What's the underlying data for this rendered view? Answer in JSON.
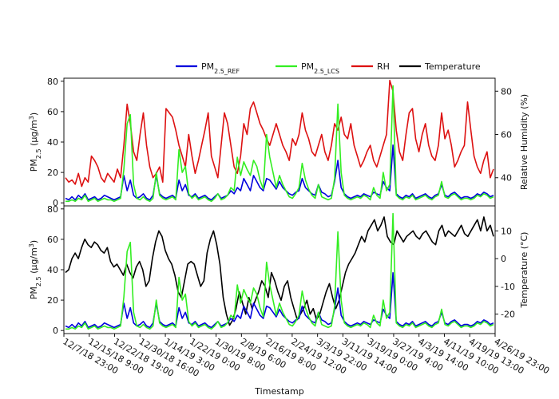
{
  "chart_data": [
    {
      "type": "line",
      "panel": "top",
      "ylabel_left": "PM2.5 (µg/m3)",
      "ylabel_right": "Relative Humidity (%)",
      "ylim": [
        -2,
        82
      ],
      "ylim_right": [
        27,
        86
      ],
      "yticks_left": [
        0,
        20,
        40,
        60,
        80
      ],
      "yticks_right": [
        40,
        60,
        80
      ],
      "series": [
        {
          "name": "PM2.5_REF",
          "color": "#0000dd",
          "axis": "left",
          "values": [
            3,
            2,
            4,
            2,
            5,
            3,
            6,
            2,
            3,
            4,
            2,
            3,
            5,
            4,
            3,
            2,
            3,
            4,
            18,
            8,
            15,
            5,
            3,
            4,
            6,
            3,
            2,
            5,
            18,
            6,
            4,
            3,
            4,
            5,
            3,
            15,
            8,
            12,
            5,
            4,
            6,
            3,
            4,
            5,
            3,
            2,
            4,
            6,
            3,
            4,
            5,
            8,
            6,
            10,
            8,
            16,
            12,
            8,
            18,
            14,
            10,
            8,
            16,
            15,
            12,
            9,
            14,
            10,
            8,
            6,
            5,
            7,
            8,
            16,
            10,
            8,
            6,
            5,
            12,
            7,
            6,
            4,
            5,
            14,
            28,
            10,
            6,
            4,
            3,
            4,
            5,
            4,
            6,
            5,
            4,
            7,
            6,
            5,
            14,
            10,
            8,
            38,
            6,
            4,
            3,
            5,
            4,
            6,
            3,
            4,
            5,
            6,
            4,
            3,
            5,
            6,
            12,
            5,
            4,
            6,
            7,
            5,
            3,
            4,
            4,
            3,
            4,
            6,
            5,
            7,
            6,
            4,
            5
          ]
        },
        {
          "name": "PM2.5_LCS",
          "color": "#33ee22",
          "axis": "left",
          "values": [
            1,
            1,
            2,
            1,
            3,
            2,
            5,
            1,
            2,
            3,
            1,
            2,
            3,
            2,
            2,
            1,
            2,
            3,
            22,
            52,
            58,
            12,
            3,
            2,
            4,
            2,
            1,
            3,
            20,
            5,
            3,
            2,
            3,
            4,
            2,
            35,
            20,
            24,
            6,
            3,
            5,
            2,
            3,
            4,
            2,
            1,
            3,
            6,
            2,
            3,
            5,
            10,
            8,
            30,
            18,
            27,
            22,
            18,
            28,
            24,
            15,
            9,
            45,
            30,
            20,
            10,
            18,
            12,
            8,
            4,
            3,
            6,
            10,
            26,
            15,
            9,
            5,
            3,
            12,
            4,
            3,
            2,
            3,
            16,
            65,
            20,
            5,
            3,
            2,
            3,
            4,
            3,
            5,
            4,
            2,
            10,
            5,
            3,
            20,
            8,
            12,
            77,
            5,
            3,
            2,
            4,
            3,
            5,
            2,
            3,
            4,
            5,
            3,
            2,
            4,
            5,
            14,
            4,
            3,
            5,
            6,
            4,
            2,
            3,
            3,
            2,
            3,
            5,
            4,
            6,
            5,
            3,
            4
          ]
        },
        {
          "name": "RH",
          "color": "#dd1111",
          "axis": "right",
          "values": [
            40,
            38,
            39,
            37,
            42,
            36,
            40,
            38,
            50,
            48,
            45,
            40,
            38,
            42,
            40,
            38,
            44,
            40,
            55,
            74,
            65,
            52,
            48,
            60,
            70,
            55,
            45,
            40,
            42,
            45,
            38,
            72,
            70,
            68,
            62,
            55,
            50,
            45,
            60,
            50,
            42,
            48,
            55,
            62,
            70,
            50,
            45,
            40,
            55,
            70,
            65,
            55,
            45,
            42,
            50,
            65,
            60,
            72,
            75,
            70,
            65,
            62,
            58,
            55,
            60,
            65,
            60,
            55,
            52,
            48,
            58,
            55,
            60,
            70,
            62,
            58,
            52,
            50,
            55,
            60,
            52,
            48,
            55,
            65,
            62,
            68,
            60,
            58,
            65,
            55,
            50,
            45,
            48,
            52,
            55,
            48,
            45,
            50,
            55,
            60,
            85,
            80,
            62,
            52,
            48,
            60,
            70,
            72,
            58,
            52,
            60,
            65,
            55,
            50,
            48,
            55,
            70,
            58,
            62,
            55,
            45,
            48,
            52,
            55,
            75,
            62,
            50,
            45,
            42,
            48,
            52,
            40,
            44
          ]
        },
        {
          "name": "Temperature",
          "color": "#000000",
          "axis": "none",
          "values": []
        }
      ]
    },
    {
      "type": "line",
      "panel": "bottom",
      "xlabel": "Timestamp",
      "ylabel_left": "PM2.5 (µg/m3)",
      "ylabel_right": "Temperature (°C)",
      "ylim": [
        -2,
        82
      ],
      "ylim_right": [
        -27,
        19
      ],
      "yticks_left": [
        0,
        20,
        40,
        60,
        80
      ],
      "yticks_right": [
        -20,
        -10,
        0,
        10
      ],
      "x_tick_labels": [
        "12/7/18 23:00",
        "12/15/18 9:00",
        "12/22/18 19:00",
        "12/30/18 16:00",
        "1/14/19 3:00",
        "1/22/19 0:00",
        "1/30/19 8:00",
        "2/8/19 6:00",
        "2/16/19 8:00",
        "2/24/19 12:00",
        "3/3/19 22:00",
        "3/11/19 14:00",
        "3/19/19 0:00",
        "3/27/19 4:00",
        "4/3/19 14:00",
        "4/11/19 10:00",
        "4/19/19 13:00",
        "4/26/19 23:00"
      ],
      "series": [
        {
          "name": "PM2.5_REF",
          "color": "#0000dd",
          "axis": "left",
          "values": [
            3,
            2,
            4,
            2,
            5,
            3,
            6,
            2,
            3,
            4,
            2,
            3,
            5,
            4,
            3,
            2,
            3,
            4,
            18,
            8,
            15,
            5,
            3,
            4,
            6,
            3,
            2,
            5,
            18,
            6,
            4,
            3,
            4,
            5,
            3,
            15,
            8,
            12,
            5,
            4,
            6,
            3,
            4,
            5,
            3,
            2,
            4,
            6,
            3,
            4,
            5,
            8,
            6,
            10,
            8,
            16,
            12,
            8,
            18,
            14,
            10,
            8,
            16,
            15,
            12,
            9,
            14,
            10,
            8,
            6,
            5,
            7,
            8,
            16,
            10,
            8,
            6,
            5,
            12,
            7,
            6,
            4,
            5,
            14,
            28,
            10,
            6,
            4,
            3,
            4,
            5,
            4,
            6,
            5,
            4,
            7,
            6,
            5,
            14,
            10,
            8,
            38,
            6,
            4,
            3,
            5,
            4,
            6,
            3,
            4,
            5,
            6,
            4,
            3,
            5,
            6,
            12,
            5,
            4,
            6,
            7,
            5,
            3,
            4,
            4,
            3,
            4,
            6,
            5,
            7,
            6,
            4,
            5
          ]
        },
        {
          "name": "PM2.5_LCS",
          "color": "#33ee22",
          "axis": "left",
          "values": [
            1,
            1,
            2,
            1,
            3,
            2,
            5,
            1,
            2,
            3,
            1,
            2,
            3,
            2,
            2,
            1,
            2,
            3,
            22,
            52,
            58,
            12,
            3,
            2,
            4,
            2,
            1,
            3,
            20,
            5,
            3,
            2,
            3,
            4,
            2,
            35,
            20,
            24,
            6,
            3,
            5,
            2,
            3,
            4,
            2,
            1,
            3,
            6,
            2,
            3,
            5,
            10,
            8,
            30,
            18,
            27,
            22,
            18,
            28,
            24,
            15,
            9,
            45,
            30,
            20,
            10,
            18,
            12,
            8,
            4,
            3,
            6,
            10,
            26,
            15,
            9,
            5,
            3,
            12,
            4,
            3,
            2,
            3,
            16,
            65,
            20,
            5,
            3,
            2,
            3,
            4,
            3,
            5,
            4,
            2,
            10,
            5,
            3,
            20,
            8,
            12,
            77,
            5,
            3,
            2,
            4,
            3,
            5,
            2,
            3,
            4,
            5,
            3,
            2,
            4,
            5,
            14,
            4,
            3,
            5,
            6,
            4,
            2,
            3,
            3,
            2,
            3,
            5,
            4,
            6,
            5,
            3,
            4
          ]
        },
        {
          "name": "Temperature",
          "color": "#000000",
          "axis": "right",
          "values": [
            -5,
            -4,
            0,
            2,
            0,
            4,
            7,
            5,
            4,
            6,
            5,
            3,
            2,
            4,
            -1,
            -3,
            -2,
            -4,
            -6,
            -2,
            -5,
            -7,
            -3,
            -1,
            -4,
            -10,
            -8,
            0,
            6,
            10,
            8,
            3,
            0,
            -2,
            -6,
            -12,
            -14,
            -8,
            -2,
            -1,
            -2,
            -6,
            -10,
            -8,
            2,
            7,
            10,
            5,
            -2,
            -14,
            -20,
            -24,
            -22,
            -18,
            -12,
            -16,
            -20,
            -14,
            -18,
            -15,
            -12,
            -8,
            -10,
            -14,
            -5,
            -8,
            -12,
            -15,
            -10,
            -8,
            -14,
            -18,
            -22,
            -20,
            -18,
            -15,
            -20,
            -18,
            -22,
            -20,
            -16,
            -12,
            -9,
            -14,
            -18,
            -15,
            -10,
            -5,
            -2,
            0,
            2,
            5,
            8,
            6,
            10,
            12,
            14,
            10,
            12,
            15,
            8,
            6,
            5,
            10,
            8,
            6,
            8,
            9,
            10,
            8,
            7,
            9,
            10,
            8,
            6,
            5,
            10,
            12,
            8,
            10,
            9,
            8,
            10,
            12,
            9,
            8,
            10,
            12,
            14,
            10,
            15,
            10,
            12,
            8
          ]
        }
      ]
    }
  ],
  "legend": {
    "position": "top-center",
    "items": [
      {
        "base": "PM",
        "sub": "2.5_REF",
        "color": "#0000dd"
      },
      {
        "base": "PM",
        "sub": "2.5_LCS",
        "color": "#33ee22"
      },
      {
        "base": "RH",
        "sub": "",
        "color": "#dd1111"
      },
      {
        "base": "Temperature",
        "sub": "",
        "color": "#000000"
      }
    ]
  },
  "axes": {
    "pm_label_base": "PM",
    "pm_label_sub": "2.5",
    "pm_label_unit": " (µg/m",
    "pm_label_sup": "3",
    "pm_label_end": ")",
    "rh_label": "Relative Humidity (%)",
    "temp_label": "Temperature (°C)",
    "x_label": "Timestamp"
  }
}
